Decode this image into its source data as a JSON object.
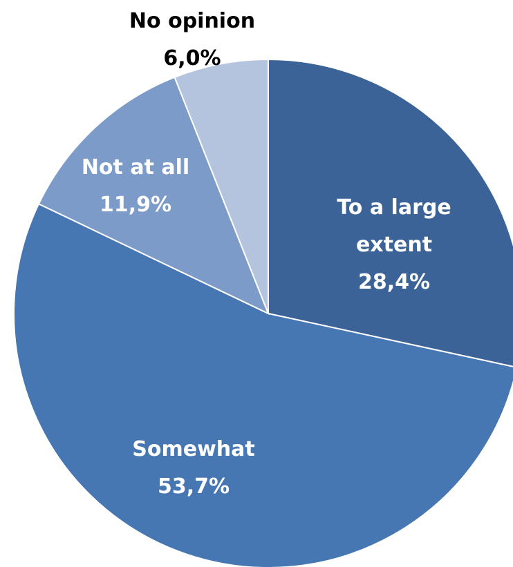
{
  "chart_data": {
    "type": "pie",
    "title": "",
    "start_angle_deg": 0,
    "direction": "clockwise",
    "series": [
      {
        "values": [
          28.4,
          53.7,
          11.9,
          6.0
        ]
      }
    ],
    "slices": [
      {
        "label_lines": [
          "To a large",
          "extent"
        ],
        "value": 28.4,
        "value_label": "28,4%",
        "color": "#3B6397",
        "label_color": "#ffffff"
      },
      {
        "label_lines": [
          "Somewhat"
        ],
        "value": 53.7,
        "value_label": "53,7%",
        "color": "#4677B2",
        "label_color": "#ffffff"
      },
      {
        "label_lines": [
          "Not at all"
        ],
        "value": 11.9,
        "value_label": "11,9%",
        "color": "#7D9BC9",
        "label_color": "#ffffff"
      },
      {
        "label_lines": [
          "No opinion"
        ],
        "value": 6.0,
        "value_label": "6,0%",
        "color": "#B4C4DF",
        "label_color": "#000000"
      }
    ],
    "legend": "none",
    "data_labels": "on-slice"
  }
}
